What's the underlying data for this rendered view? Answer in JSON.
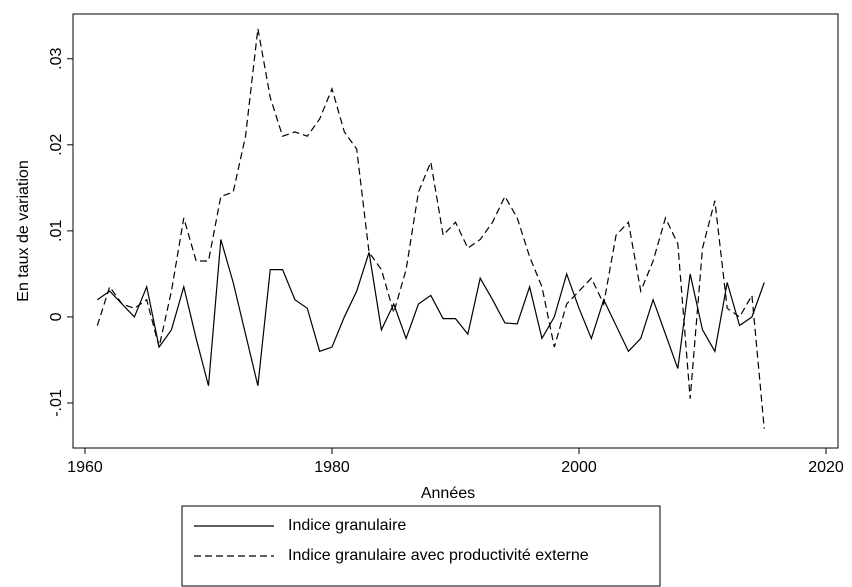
{
  "chart_data": {
    "type": "line",
    "x_label": "Années",
    "y_label": "En taux de variation",
    "x": [
      1961,
      1962,
      1963,
      1964,
      1965,
      1966,
      1967,
      1968,
      1969,
      1970,
      1971,
      1972,
      1973,
      1974,
      1975,
      1976,
      1977,
      1978,
      1979,
      1980,
      1981,
      1982,
      1983,
      1984,
      1985,
      1986,
      1987,
      1988,
      1989,
      1990,
      1991,
      1992,
      1993,
      1994,
      1995,
      1996,
      1997,
      1998,
      1999,
      2000,
      2001,
      2002,
      2003,
      2004,
      2005,
      2006,
      2007,
      2008,
      2009,
      2010,
      2011,
      2012,
      2013,
      2014,
      2015
    ],
    "series": [
      {
        "name": "Indice granulaire",
        "color": "#000000",
        "linestyle": "solid",
        "values": [
          0.002,
          0.003,
          0.0015,
          0.0,
          0.0035,
          -0.0035,
          -0.0015,
          0.0035,
          -0.0025,
          -0.008,
          0.009,
          0.004,
          -0.002,
          -0.008,
          0.0055,
          0.0055,
          0.002,
          0.001,
          -0.004,
          -0.0035,
          0.0,
          0.003,
          0.0075,
          -0.0015,
          0.0015,
          -0.0025,
          0.0015,
          0.0025,
          -0.0002,
          -0.0002,
          -0.002,
          0.0045,
          0.002,
          -0.0007,
          -0.0008,
          0.0035,
          -0.0025,
          0.0,
          0.005,
          0.001,
          -0.0025,
          0.002,
          -0.001,
          -0.004,
          -0.0025,
          0.002,
          -0.002,
          -0.006,
          0.005,
          -0.0015,
          -0.004,
          0.004,
          -0.001,
          0.0,
          0.004
        ]
      },
      {
        "name": "Indice granulaire avec productivité externe",
        "color": "#000000",
        "linestyle": "dashed",
        "values": [
          -0.001,
          0.0035,
          0.0015,
          0.001,
          0.002,
          -0.0035,
          0.003,
          0.0115,
          0.0065,
          0.0065,
          0.014,
          0.0145,
          0.021,
          0.0335,
          0.0255,
          0.021,
          0.0215,
          0.021,
          0.023,
          0.0265,
          0.0215,
          0.0195,
          0.0075,
          0.0055,
          0.0005,
          0.0055,
          0.0145,
          0.018,
          0.0095,
          0.011,
          0.008,
          0.009,
          0.011,
          0.014,
          0.0115,
          0.007,
          0.0035,
          -0.0035,
          0.0015,
          0.003,
          0.0045,
          0.0015,
          0.0095,
          0.011,
          0.003,
          0.0065,
          0.0115,
          0.0085,
          -0.0095,
          0.008,
          0.0135,
          0.001,
          0.0,
          0.0025,
          -0.013
        ]
      }
    ],
    "xlim": [
      1959.03,
      2020.97
    ],
    "ylim": [
      -0.01523,
      0.0352
    ],
    "xticks": [
      1960,
      1980,
      2000,
      2020
    ],
    "yticks": [
      {
        "value": -0.01,
        "label": "-.01"
      },
      {
        "value": 0,
        "label": "0"
      },
      {
        "value": 0.01,
        "label": ".01"
      },
      {
        "value": 0.02,
        "label": ".02"
      },
      {
        "value": 0.03,
        "label": ".03"
      }
    ],
    "legend": "bottom"
  }
}
